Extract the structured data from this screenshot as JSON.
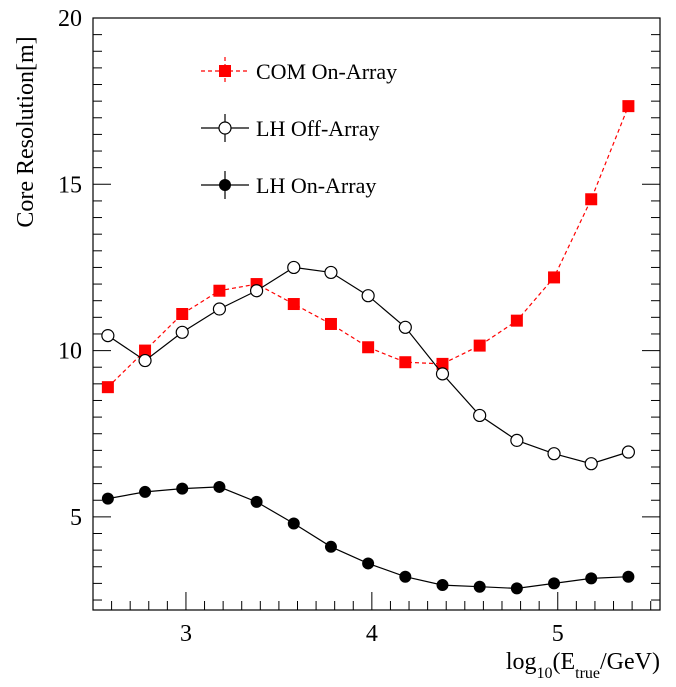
{
  "chart_data": {
    "type": "line",
    "xlabel": {
      "prefix": "log",
      "prefix_sub": "10",
      "open": "(E",
      "var_sub": "true",
      "rest": "/GeV)"
    },
    "ylabel": "Core Resolution[m]",
    "xlim": [
      2.5,
      5.55
    ],
    "ylim": [
      2.2,
      20
    ],
    "x_ticks": [
      3,
      4,
      5
    ],
    "x_tick_labels": [
      "3",
      "4",
      "5"
    ],
    "y_ticks": [
      5,
      10,
      15,
      20
    ],
    "y_tick_labels": [
      "5",
      "10",
      "15",
      "20"
    ],
    "grid": false,
    "legend_placement": "top-left",
    "x": [
      2.58,
      2.78,
      2.98,
      3.18,
      3.38,
      3.58,
      3.78,
      3.98,
      4.18,
      4.38,
      4.58,
      4.78,
      4.98,
      5.18,
      5.38
    ],
    "series": [
      {
        "name": "COM On-Array",
        "marker": "filled-square",
        "color": "#ff0000",
        "line": "dashed",
        "values": [
          8.9,
          10.0,
          11.1,
          11.8,
          12.0,
          11.4,
          10.8,
          10.1,
          9.65,
          9.6,
          10.15,
          10.9,
          12.2,
          14.55,
          17.35
        ]
      },
      {
        "name": "LH Off-Array",
        "marker": "open-circle",
        "color": "#000000",
        "line": "solid",
        "values": [
          10.45,
          9.7,
          10.55,
          11.25,
          11.8,
          12.5,
          12.35,
          11.65,
          10.7,
          9.3,
          8.05,
          7.3,
          6.9,
          6.6,
          6.95
        ]
      },
      {
        "name": "LH On-Array",
        "marker": "filled-circle",
        "color": "#000000",
        "line": "solid",
        "values": [
          5.55,
          5.75,
          5.85,
          5.9,
          5.45,
          4.8,
          4.1,
          3.6,
          3.2,
          2.95,
          2.9,
          2.85,
          3.0,
          3.15,
          3.2
        ]
      }
    ]
  }
}
